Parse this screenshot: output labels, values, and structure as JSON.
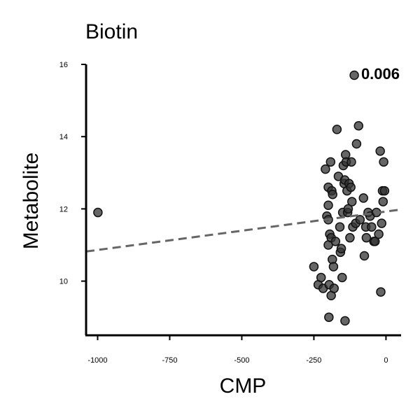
{
  "chart_data": {
    "type": "scatter",
    "title": "Biotin",
    "xlabel": "CMP",
    "ylabel": "Metabolite",
    "annotation": "0.006",
    "xlim": [
      -1040,
      50
    ],
    "ylim": [
      8.5,
      16
    ],
    "xticks": [
      -1000,
      -750,
      -500,
      -250,
      0
    ],
    "xtick_labels": [
      "-1000",
      "-750",
      "-500",
      "-250",
      "0"
    ],
    "yticks": [
      10,
      12,
      14,
      16
    ],
    "ytick_labels": [
      "10",
      "12",
      "14",
      "16"
    ],
    "grid": false,
    "point_color": "#333333",
    "trend_color": "#666666",
    "trendline": {
      "x": [
        -1040,
        50
      ],
      "y": [
        10.82,
        11.98
      ]
    },
    "points": [
      {
        "x": -999,
        "y": 11.9
      },
      {
        "x": -250,
        "y": 10.4
      },
      {
        "x": -235,
        "y": 9.9
      },
      {
        "x": -225,
        "y": 10.1
      },
      {
        "x": -218,
        "y": 9.8
      },
      {
        "x": -210,
        "y": 13.1
      },
      {
        "x": -205,
        "y": 11.8
      },
      {
        "x": -200,
        "y": 12.6
      },
      {
        "x": -200,
        "y": 12.1
      },
      {
        "x": -200,
        "y": 11.0
      },
      {
        "x": -200,
        "y": 11.7
      },
      {
        "x": -198,
        "y": 9.0
      },
      {
        "x": -197,
        "y": 9.9
      },
      {
        "x": -195,
        "y": 11.3
      },
      {
        "x": -192,
        "y": 13.3
      },
      {
        "x": -190,
        "y": 11.2
      },
      {
        "x": -190,
        "y": 9.6
      },
      {
        "x": -188,
        "y": 12.5
      },
      {
        "x": -186,
        "y": 10.6
      },
      {
        "x": -185,
        "y": 12.4
      },
      {
        "x": -182,
        "y": 10.4
      },
      {
        "x": -180,
        "y": 9.8
      },
      {
        "x": -175,
        "y": 11.1
      },
      {
        "x": -170,
        "y": 14.2
      },
      {
        "x": -165,
        "y": 12.9
      },
      {
        "x": -160,
        "y": 11.5
      },
      {
        "x": -158,
        "y": 10.8
      },
      {
        "x": -155,
        "y": 10.9
      },
      {
        "x": -152,
        "y": 10.1
      },
      {
        "x": -150,
        "y": 11.9
      },
      {
        "x": -148,
        "y": 13.2
      },
      {
        "x": -145,
        "y": 12.7
      },
      {
        "x": -143,
        "y": 12.8
      },
      {
        "x": -142,
        "y": 8.9
      },
      {
        "x": -140,
        "y": 13.5
      },
      {
        "x": -138,
        "y": 13.3
      },
      {
        "x": -135,
        "y": 12.5
      },
      {
        "x": -133,
        "y": 11.9
      },
      {
        "x": -131,
        "y": 12.0
      },
      {
        "x": -128,
        "y": 12.7
      },
      {
        "x": -125,
        "y": 11.2
      },
      {
        "x": -122,
        "y": 12.6
      },
      {
        "x": -120,
        "y": 13.3
      },
      {
        "x": -118,
        "y": 12.2
      },
      {
        "x": -115,
        "y": 11.5
      },
      {
        "x": -110,
        "y": 15.7
      },
      {
        "x": -105,
        "y": 11.6
      },
      {
        "x": -102,
        "y": 13.8
      },
      {
        "x": -95,
        "y": 14.3
      },
      {
        "x": -90,
        "y": 11.7
      },
      {
        "x": -78,
        "y": 12.3
      },
      {
        "x": -75,
        "y": 10.7
      },
      {
        "x": -70,
        "y": 11.5
      },
      {
        "x": -68,
        "y": 11.2
      },
      {
        "x": -62,
        "y": 11.9
      },
      {
        "x": -55,
        "y": 11.8
      },
      {
        "x": -50,
        "y": 11.5
      },
      {
        "x": -42,
        "y": 11.1
      },
      {
        "x": -38,
        "y": 11.1
      },
      {
        "x": -33,
        "y": 11.9
      },
      {
        "x": -25,
        "y": 11.3
      },
      {
        "x": -20,
        "y": 13.6
      },
      {
        "x": -18,
        "y": 9.7
      },
      {
        "x": -15,
        "y": 11.6
      },
      {
        "x": -12,
        "y": 12.5
      },
      {
        "x": -10,
        "y": 12.2
      },
      {
        "x": -8,
        "y": 13.3
      },
      {
        "x": -5,
        "y": 12.5
      }
    ]
  }
}
